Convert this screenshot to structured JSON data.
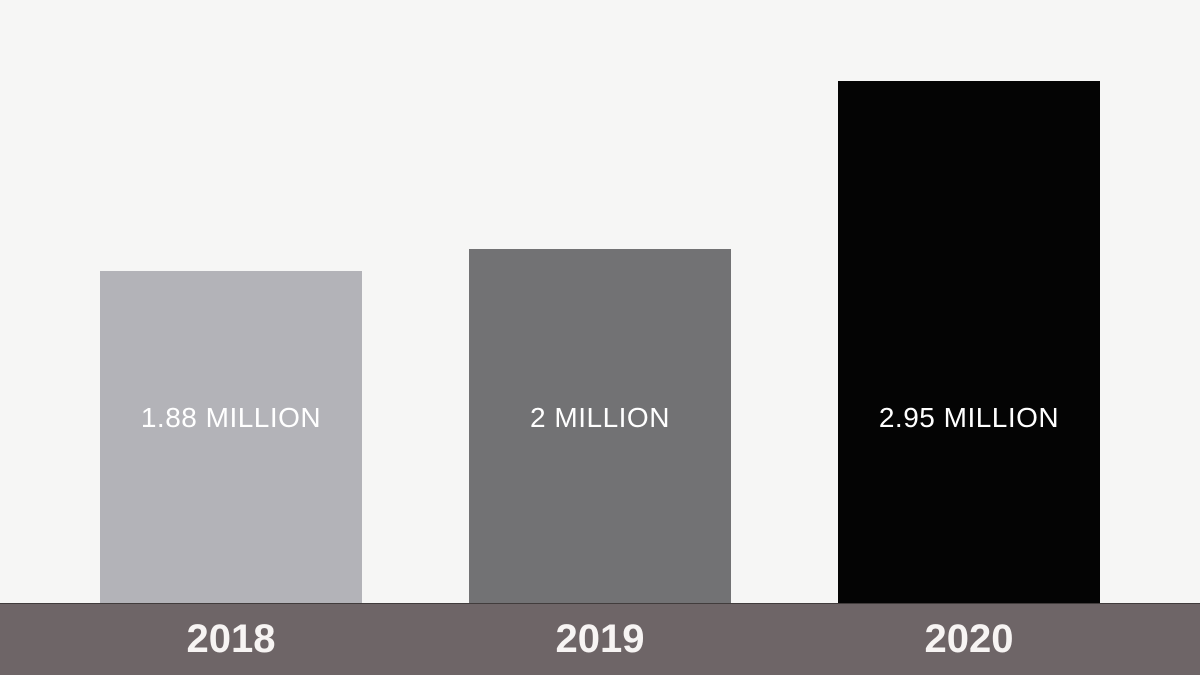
{
  "chart_data": {
    "type": "bar",
    "categories": [
      "2018",
      "2019",
      "2020"
    ],
    "values": [
      1.88,
      2.0,
      2.95
    ],
    "value_unit": "million",
    "value_labels": [
      "1.88 MILLION",
      "2 MILLION",
      "2.95 MILLION"
    ],
    "title": "",
    "xlabel": "",
    "ylabel": "",
    "grid": false,
    "legend": false,
    "bar_colors": [
      "#b3b3b8",
      "#727274",
      "#040404"
    ],
    "value_label_color": "#ffffff",
    "tick_label_color": "#f7f4f3",
    "background_color": "#f6f6f5",
    "axis_band_color": "#6e6567"
  }
}
